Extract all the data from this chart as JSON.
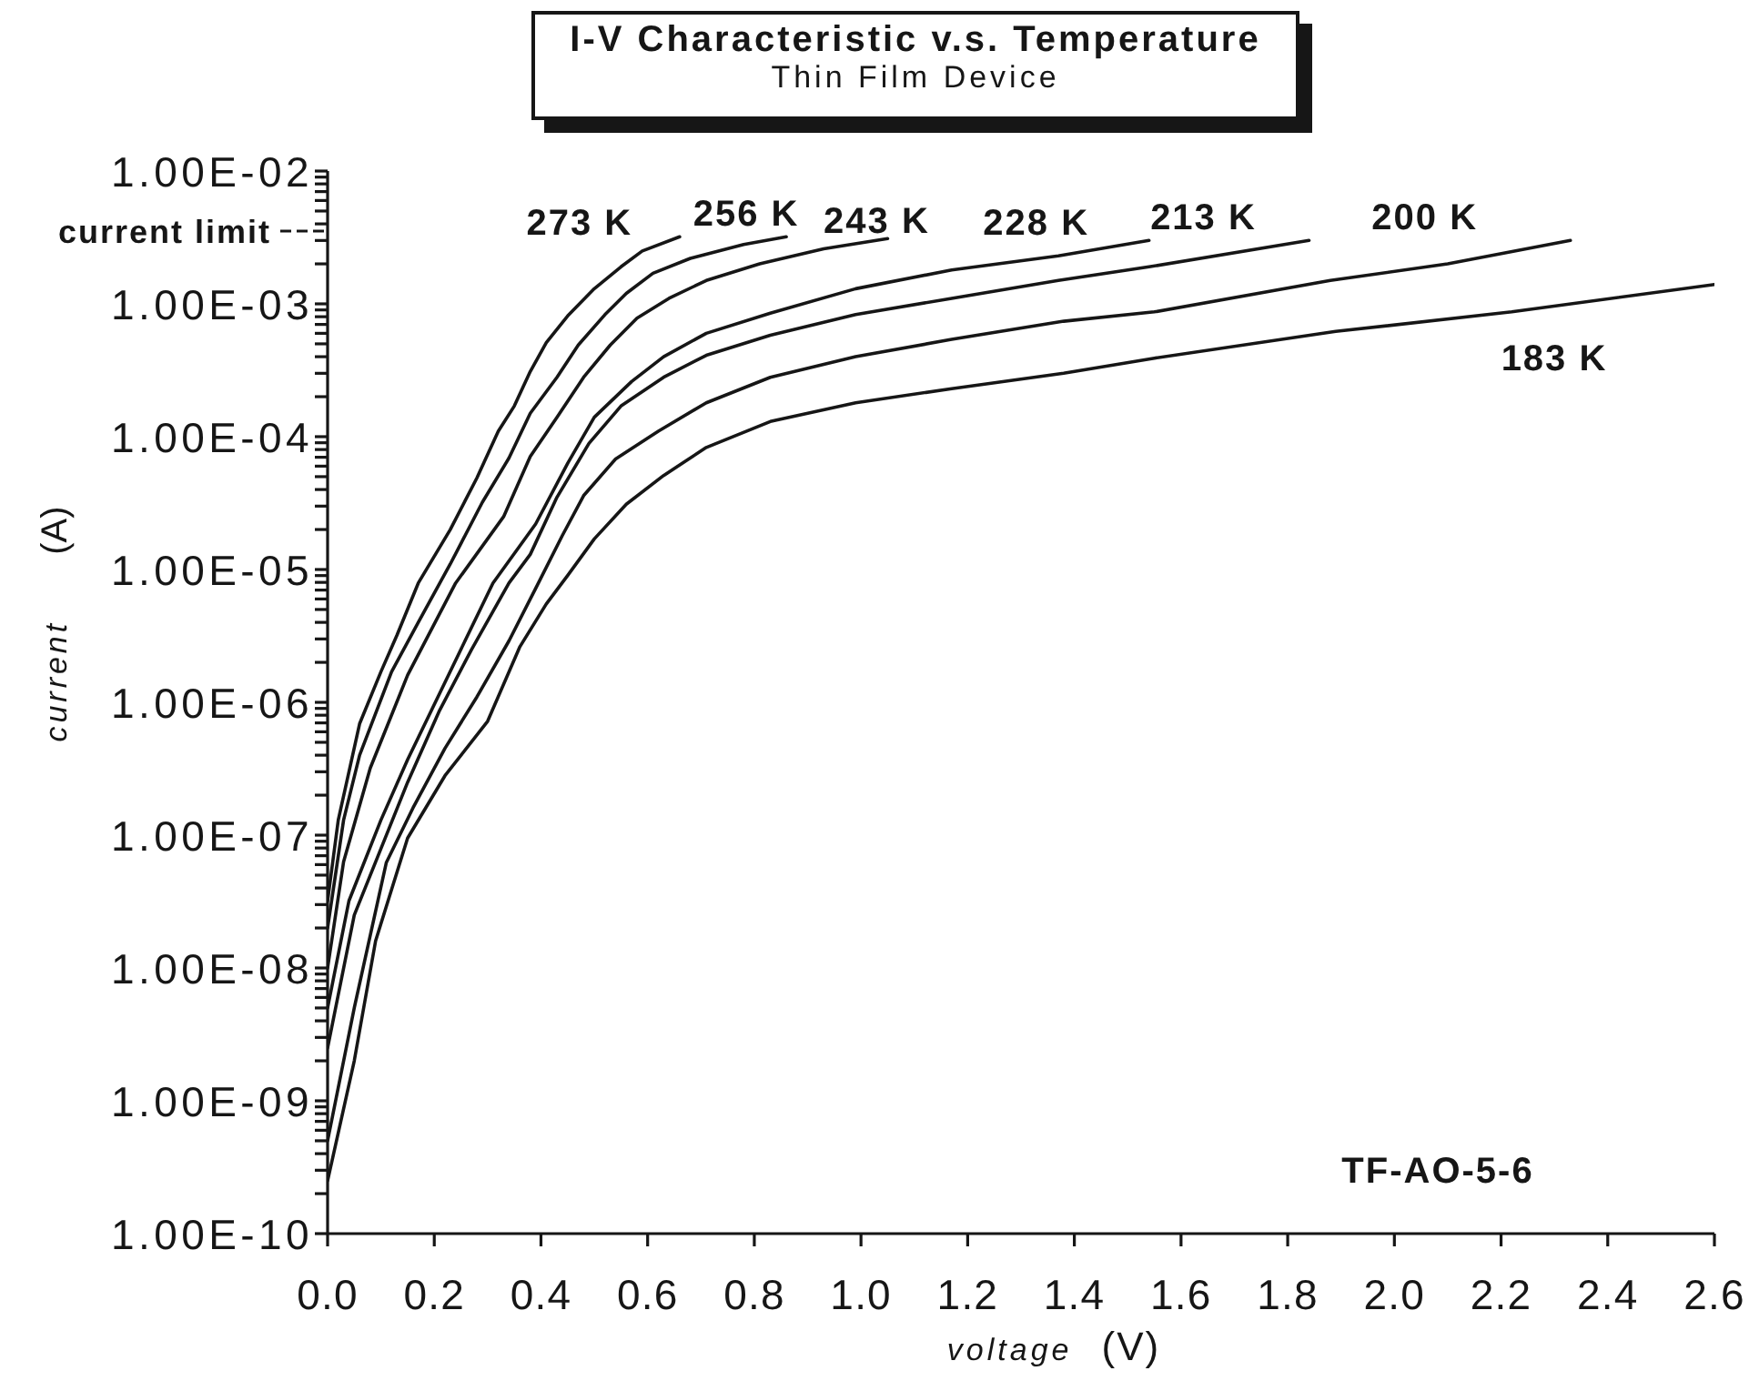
{
  "chart_data": {
    "type": "line",
    "title": "I-V Characteristic v.s. Temperature",
    "subtitle": "Thin Film Device",
    "xlabel": "voltage (V)",
    "ylabel": "current (A)",
    "log": "y",
    "xlim": [
      0,
      2.6
    ],
    "xticks": [
      {
        "value": 0,
        "label": "0.0"
      },
      0.2,
      0.4,
      0.6,
      0.8,
      {
        "value": 1,
        "label": "1.0"
      },
      1.2,
      1.4,
      1.6,
      1.8,
      {
        "value": 2,
        "label": "2.0"
      },
      2.2,
      2.4,
      2.6
    ],
    "ylim": [
      1e-10,
      0.01
    ],
    "yticks": [
      {
        "value": 1e-10,
        "label": "1.00E-10"
      },
      {
        "value": 2e-10,
        "label": null
      },
      {
        "value": 3e-10,
        "label": null
      },
      {
        "value": 4e-10,
        "label": null
      },
      {
        "value": 5e-10,
        "label": null
      },
      {
        "value": 6e-10,
        "label": null
      },
      {
        "value": 7e-10,
        "label": null
      },
      {
        "value": 8e-10,
        "label": null
      },
      {
        "value": 9e-10,
        "label": null
      },
      {
        "value": 1e-09,
        "label": "1.00E-09"
      },
      {
        "value": 2e-09,
        "label": null
      },
      {
        "value": 3e-09,
        "label": null
      },
      {
        "value": 4e-09,
        "label": null
      },
      {
        "value": 5e-09,
        "label": null
      },
      {
        "value": 6e-09,
        "label": null
      },
      {
        "value": 7e-09,
        "label": null
      },
      {
        "value": 8e-09,
        "label": null
      },
      {
        "value": 9e-09,
        "label": null
      },
      {
        "value": 1e-08,
        "label": "1.00E-08"
      },
      {
        "value": 2e-08,
        "label": null
      },
      {
        "value": 3e-08,
        "label": null
      },
      {
        "value": 4e-08,
        "label": null
      },
      {
        "value": 5e-08,
        "label": null
      },
      {
        "value": 6e-08,
        "label": null
      },
      {
        "value": 7e-08,
        "label": null
      },
      {
        "value": 8e-08,
        "label": null
      },
      {
        "value": 9e-08,
        "label": null
      },
      {
        "value": 1e-07,
        "label": "1.00E-07"
      },
      {
        "value": 2e-07,
        "label": null
      },
      {
        "value": 3e-07,
        "label": null
      },
      {
        "value": 4e-07,
        "label": null
      },
      {
        "value": 5e-07,
        "label": null
      },
      {
        "value": 6e-07,
        "label": null
      },
      {
        "value": 7e-07,
        "label": null
      },
      {
        "value": 8e-07,
        "label": null
      },
      {
        "value": 9e-07,
        "label": null
      },
      {
        "value": 1e-06,
        "label": "1.00E-06"
      },
      {
        "value": 2e-06,
        "label": null
      },
      {
        "value": 3e-06,
        "label": null
      },
      {
        "value": 4e-06,
        "label": null
      },
      {
        "value": 5e-06,
        "label": null
      },
      {
        "value": 6e-06,
        "label": null
      },
      {
        "value": 7e-06,
        "label": null
      },
      {
        "value": 8e-06,
        "label": null
      },
      {
        "value": 9e-06,
        "label": null
      },
      {
        "value": 1e-05,
        "label": "1.00E-05"
      },
      {
        "value": 2e-05,
        "label": null
      },
      {
        "value": 3e-05,
        "label": null
      },
      {
        "value": 4e-05,
        "label": null
      },
      {
        "value": 5e-05,
        "label": null
      },
      {
        "value": 6e-05,
        "label": null
      },
      {
        "value": 7e-05,
        "label": null
      },
      {
        "value": 8e-05,
        "label": null
      },
      {
        "value": 9e-05,
        "label": null
      },
      {
        "value": 0.0001,
        "label": "1.00E-04"
      },
      {
        "value": 0.0002,
        "label": null
      },
      {
        "value": 0.0003,
        "label": null
      },
      {
        "value": 0.0004,
        "label": null
      },
      {
        "value": 0.0005,
        "label": null
      },
      {
        "value": 0.0006,
        "label": null
      },
      {
        "value": 0.0007,
        "label": null
      },
      {
        "value": 0.0008,
        "label": null
      },
      {
        "value": 0.0009,
        "label": null
      },
      {
        "value": 0.001,
        "label": "1.00E-03"
      },
      {
        "value": 0.002,
        "label": null
      },
      {
        "value": 0.003,
        "label": null
      },
      {
        "value": 0.004,
        "label": null
      },
      {
        "value": 0.005,
        "label": null
      },
      {
        "value": 0.006,
        "label": null
      },
      {
        "value": 0.007,
        "label": null
      },
      {
        "value": 0.008,
        "label": null
      },
      {
        "value": 0.009,
        "label": null
      },
      {
        "value": 0.01,
        "label": "1.00E-02"
      }
    ],
    "annotations": [
      "current limit",
      "TF-AO-5-6"
    ],
    "series": [
      {
        "name": "273 K",
        "color": "#161616",
        "x": [
          0,
          0.02,
          0.06,
          0.1,
          0.13,
          0.17,
          0.23,
          0.28,
          0.32,
          0.35,
          0.38,
          0.41,
          0.45,
          0.5,
          0.55,
          0.59,
          0.66
        ],
        "values": [
          3.2e-08,
          1.3e-07,
          6.9e-07,
          1.7e-06,
          3.2e-06,
          7.9e-06,
          2e-05,
          4.9e-05,
          0.00011,
          0.00017,
          0.00031,
          0.00051,
          0.00081,
          0.0013,
          0.0019,
          0.0025,
          0.0032
        ]
      },
      {
        "name": "256 K",
        "color": "#161616",
        "x": [
          0,
          0.03,
          0.06,
          0.12,
          0.17,
          0.23,
          0.29,
          0.34,
          0.38,
          0.43,
          0.47,
          0.52,
          0.56,
          0.61,
          0.68,
          0.78,
          0.86
        ],
        "values": [
          2e-08,
          1.3e-07,
          4e-07,
          1.7e-06,
          4e-06,
          1.1e-05,
          3.2e-05,
          6.9e-05,
          0.00015,
          0.00028,
          0.00049,
          0.00083,
          0.0012,
          0.0017,
          0.0022,
          0.0028,
          0.0032
        ]
      },
      {
        "name": "243 K",
        "color": "#161616",
        "x": [
          0,
          0.03,
          0.08,
          0.15,
          0.24,
          0.33,
          0.38,
          0.43,
          0.48,
          0.53,
          0.58,
          0.64,
          0.71,
          0.81,
          0.93,
          1.05
        ],
        "values": [
          1e-08,
          6.3e-08,
          3.2e-07,
          1.6e-06,
          7.9e-06,
          2.5e-05,
          7.1e-05,
          0.00014,
          0.00028,
          0.00049,
          0.00078,
          0.0011,
          0.0015,
          0.002,
          0.0026,
          0.0031
        ]
      },
      {
        "name": "228 K",
        "color": "#161616",
        "x": [
          0,
          0.04,
          0.1,
          0.15,
          0.31,
          0.39,
          0.45,
          0.5,
          0.57,
          0.63,
          0.71,
          0.83,
          0.99,
          1.17,
          1.37,
          1.54
        ],
        "values": [
          5e-09,
          3.2e-08,
          1.3e-07,
          3.7e-07,
          7.9e-06,
          2.2e-05,
          6.3e-05,
          0.00014,
          0.00026,
          0.0004,
          0.0006,
          0.00085,
          0.0013,
          0.0018,
          0.0023,
          0.003
        ]
      },
      {
        "name": "213 K",
        "color": "#161616",
        "x": [
          0,
          0.05,
          0.1,
          0.15,
          0.21,
          0.27,
          0.34,
          0.38,
          0.43,
          0.49,
          0.55,
          0.63,
          0.71,
          0.83,
          0.99,
          1.17,
          1.37,
          1.54,
          1.84
        ],
        "values": [
          2.5e-09,
          2.5e-08,
          7.9e-08,
          2.5e-07,
          8.7e-07,
          2.5e-06,
          7.9e-06,
          1.3e-05,
          3.5e-05,
          8.9e-05,
          0.00017,
          0.00028,
          0.00041,
          0.00058,
          0.00083,
          0.0011,
          0.0015,
          0.0019,
          0.003
        ]
      },
      {
        "name": "200 K",
        "color": "#161616",
        "x": [
          0,
          0.05,
          0.11,
          0.16,
          0.22,
          0.28,
          0.34,
          0.39,
          0.44,
          0.48,
          0.54,
          0.62,
          0.71,
          0.83,
          0.99,
          1.17,
          1.38,
          1.55,
          1.88,
          2.1,
          2.33
        ],
        "values": [
          5e-10,
          5e-09,
          6.2e-08,
          1.6e-07,
          4.5e-07,
          1.1e-06,
          2.9e-06,
          7.2e-06,
          1.8e-05,
          3.6e-05,
          6.8e-05,
          0.00011,
          0.00018,
          0.00028,
          0.0004,
          0.00054,
          0.00074,
          0.00087,
          0.0015,
          0.002,
          0.003
        ]
      },
      {
        "name": "183 K",
        "color": "#161616",
        "x": [
          0,
          0.05,
          0.09,
          0.15,
          0.22,
          0.3,
          0.36,
          0.41,
          0.45,
          0.5,
          0.56,
          0.63,
          0.71,
          0.83,
          0.99,
          1.17,
          1.38,
          1.55,
          1.89,
          2.22,
          2.6
        ],
        "values": [
          2.5e-10,
          2e-09,
          1.6e-08,
          9.5e-08,
          2.8e-07,
          7.2e-07,
          2.6e-06,
          5.5e-06,
          9e-06,
          1.7e-05,
          3.1e-05,
          5.1e-05,
          8.3e-05,
          0.00013,
          0.00018,
          0.00023,
          0.0003,
          0.00039,
          0.00062,
          0.00087,
          0.0014
        ]
      }
    ]
  }
}
